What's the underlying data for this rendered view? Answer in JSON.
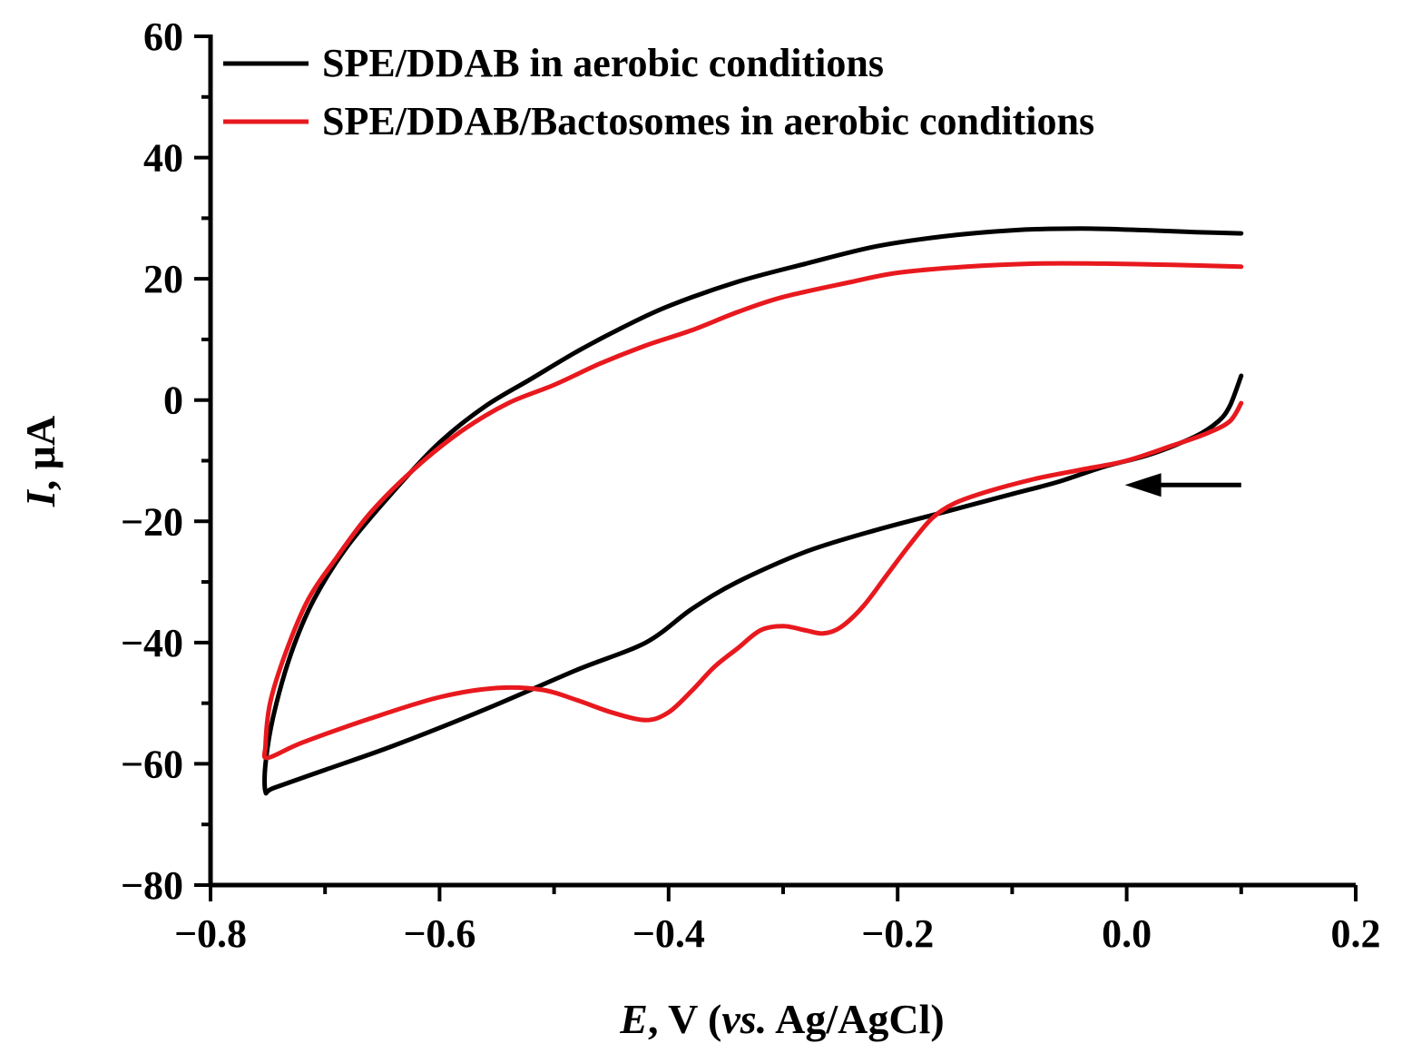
{
  "chart_data": {
    "type": "line",
    "title": "",
    "xlabel": {
      "italic": "E",
      "rest": ", V (",
      "italic2": "vs.",
      "rest2": " Ag/AgCl)"
    },
    "ylabel": {
      "italic": "I",
      "rest": ", μA"
    },
    "xlim": [
      -0.8,
      0.2
    ],
    "ylim": [
      -80,
      60
    ],
    "xticks": [
      -0.8,
      -0.6,
      -0.4,
      -0.2,
      0.0,
      0.2
    ],
    "xtick_labels": [
      "−0.8",
      "−0.6",
      "−0.4",
      "−0.2",
      "0.0",
      "0.2"
    ],
    "yticks": [
      60,
      40,
      20,
      0,
      -20,
      -40,
      -60,
      -80
    ],
    "ytick_labels": [
      "60",
      "40",
      "20",
      "0",
      "−20",
      "−40",
      "−60",
      "−80"
    ],
    "legend_position": "top-left",
    "annotation": "scan-direction arrow pointing left at E ≈ 0.1 V, I ≈ −14 μA",
    "series": [
      {
        "name": "SPE/DDAB in aerobic conditions",
        "color": "#000000",
        "points": [
          [
            0.1,
            4
          ],
          [
            0.09,
            -1
          ],
          [
            0.08,
            -3.5
          ],
          [
            0.06,
            -6
          ],
          [
            0.02,
            -9
          ],
          [
            -0.02,
            -11
          ],
          [
            -0.06,
            -13.5
          ],
          [
            -0.1,
            -15.5
          ],
          [
            -0.16,
            -18.5
          ],
          [
            -0.22,
            -21.5
          ],
          [
            -0.28,
            -25
          ],
          [
            -0.34,
            -30
          ],
          [
            -0.38,
            -34.5
          ],
          [
            -0.42,
            -40
          ],
          [
            -0.48,
            -44.5
          ],
          [
            -0.56,
            -51
          ],
          [
            -0.64,
            -57
          ],
          [
            -0.7,
            -61
          ],
          [
            -0.745,
            -64
          ],
          [
            -0.752,
            -64.6
          ],
          [
            -0.752,
            -60
          ],
          [
            -0.745,
            -52
          ],
          [
            -0.73,
            -42
          ],
          [
            -0.71,
            -33
          ],
          [
            -0.68,
            -24
          ],
          [
            -0.64,
            -15
          ],
          [
            -0.6,
            -7
          ],
          [
            -0.56,
            -1
          ],
          [
            -0.52,
            3.5
          ],
          [
            -0.48,
            8
          ],
          [
            -0.44,
            12
          ],
          [
            -0.4,
            15.5
          ],
          [
            -0.34,
            19.5
          ],
          [
            -0.28,
            22.5
          ],
          [
            -0.22,
            25.3
          ],
          [
            -0.16,
            27
          ],
          [
            -0.1,
            28
          ],
          [
            -0.04,
            28.3
          ],
          [
            0.02,
            28
          ],
          [
            0.06,
            27.7
          ],
          [
            0.1,
            27.5
          ]
        ]
      },
      {
        "name": "SPE/DDAB/Bactosomes in aerobic conditions",
        "color": "#e8191e",
        "points": [
          [
            0.1,
            -0.5
          ],
          [
            0.09,
            -3.5
          ],
          [
            0.07,
            -5.5
          ],
          [
            0.04,
            -7.5
          ],
          [
            0.0,
            -10
          ],
          [
            -0.04,
            -11.5
          ],
          [
            -0.08,
            -13
          ],
          [
            -0.12,
            -15
          ],
          [
            -0.15,
            -17
          ],
          [
            -0.17,
            -19.5
          ],
          [
            -0.19,
            -24
          ],
          [
            -0.21,
            -29
          ],
          [
            -0.23,
            -34
          ],
          [
            -0.25,
            -37.5
          ],
          [
            -0.265,
            -38.5
          ],
          [
            -0.28,
            -38
          ],
          [
            -0.3,
            -37.3
          ],
          [
            -0.32,
            -38
          ],
          [
            -0.34,
            -41
          ],
          [
            -0.36,
            -44
          ],
          [
            -0.38,
            -48
          ],
          [
            -0.4,
            -51.5
          ],
          [
            -0.42,
            -52.8
          ],
          [
            -0.45,
            -51.5
          ],
          [
            -0.48,
            -49.5
          ],
          [
            -0.51,
            -47.8
          ],
          [
            -0.55,
            -47.5
          ],
          [
            -0.6,
            -49
          ],
          [
            -0.66,
            -52.5
          ],
          [
            -0.72,
            -56.5
          ],
          [
            -0.75,
            -59
          ],
          [
            -0.752,
            -57
          ],
          [
            -0.748,
            -50
          ],
          [
            -0.735,
            -42
          ],
          [
            -0.715,
            -33
          ],
          [
            -0.69,
            -26
          ],
          [
            -0.66,
            -18.5
          ],
          [
            -0.62,
            -11
          ],
          [
            -0.58,
            -5
          ],
          [
            -0.54,
            -0.5
          ],
          [
            -0.5,
            2.5
          ],
          [
            -0.46,
            6
          ],
          [
            -0.42,
            9
          ],
          [
            -0.38,
            11.5
          ],
          [
            -0.34,
            14.5
          ],
          [
            -0.3,
            17
          ],
          [
            -0.24,
            19.5
          ],
          [
            -0.2,
            21
          ],
          [
            -0.14,
            22
          ],
          [
            -0.08,
            22.5
          ],
          [
            -0.02,
            22.5
          ],
          [
            0.04,
            22.3
          ],
          [
            0.1,
            22
          ]
        ]
      }
    ]
  }
}
